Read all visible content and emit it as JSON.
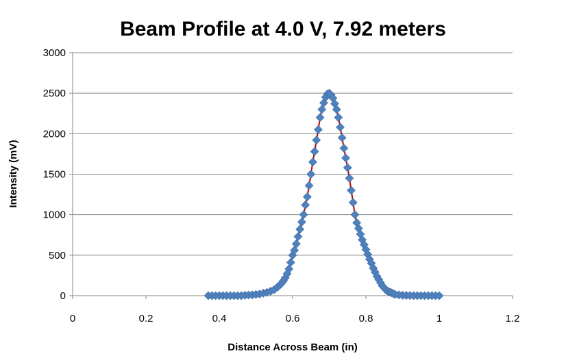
{
  "chart_data": {
    "type": "scatter",
    "title": "Beam Profile at 4.0 V, 7.92 meters",
    "xlabel": "Distance Across Beam (in)",
    "ylabel": "Intensity (mV)",
    "xlim": [
      0,
      1.2
    ],
    "ylim": [
      0,
      3000
    ],
    "x_ticks": [
      0,
      0.2,
      0.4,
      0.6,
      0.8,
      1,
      1.2
    ],
    "x_tick_labels": [
      "0",
      "0.2",
      "0.4",
      "0.6",
      "0.8",
      "1",
      "1.2"
    ],
    "y_ticks": [
      0,
      500,
      1000,
      1500,
      2000,
      2500,
      3000
    ],
    "y_tick_labels": [
      "0",
      "500",
      "1000",
      "1500",
      "2000",
      "2500",
      "3000"
    ],
    "grid": "horizontal",
    "legend": "none",
    "marker_color": "#4F81BD",
    "line_color": "#C00000",
    "series": [
      {
        "x": [
          0.37,
          0.38,
          0.39,
          0.4,
          0.41,
          0.42,
          0.43,
          0.44,
          0.45,
          0.46,
          0.47,
          0.48,
          0.49,
          0.5,
          0.51,
          0.52,
          0.53,
          0.54,
          0.55,
          0.56,
          0.565,
          0.57,
          0.575,
          0.58,
          0.585,
          0.59,
          0.595,
          0.6,
          0.605,
          0.61,
          0.615,
          0.62,
          0.625,
          0.63,
          0.635,
          0.64,
          0.645,
          0.65,
          0.655,
          0.66,
          0.665,
          0.67,
          0.675,
          0.68,
          0.685,
          0.69,
          0.695,
          0.7,
          0.705,
          0.71,
          0.715,
          0.72,
          0.725,
          0.73,
          0.735,
          0.74,
          0.745,
          0.75,
          0.755,
          0.76,
          0.765,
          0.77,
          0.775,
          0.78,
          0.785,
          0.79,
          0.795,
          0.8,
          0.805,
          0.81,
          0.815,
          0.82,
          0.825,
          0.83,
          0.835,
          0.84,
          0.845,
          0.85,
          0.855,
          0.86,
          0.865,
          0.87,
          0.875,
          0.88,
          0.89,
          0.9,
          0.91,
          0.92,
          0.93,
          0.94,
          0.95,
          0.96,
          0.97,
          0.98,
          0.99,
          1.0
        ],
        "y": [
          0,
          0,
          0,
          0,
          0,
          0,
          0,
          0,
          0,
          0,
          5,
          8,
          10,
          15,
          20,
          30,
          40,
          55,
          75,
          110,
          130,
          155,
          185,
          220,
          270,
          330,
          410,
          500,
          560,
          640,
          730,
          820,
          910,
          1000,
          1120,
          1220,
          1360,
          1500,
          1650,
          1780,
          1920,
          2050,
          2200,
          2300,
          2380,
          2450,
          2490,
          2500,
          2480,
          2440,
          2370,
          2300,
          2200,
          2080,
          1950,
          1820,
          1700,
          1580,
          1450,
          1300,
          1150,
          1000,
          900,
          830,
          760,
          690,
          630,
          570,
          510,
          450,
          400,
          340,
          290,
          240,
          200,
          160,
          120,
          95,
          70,
          55,
          45,
          35,
          25,
          15,
          10,
          5,
          3,
          2,
          1,
          0,
          0,
          0,
          0,
          0,
          0,
          0
        ]
      }
    ]
  }
}
